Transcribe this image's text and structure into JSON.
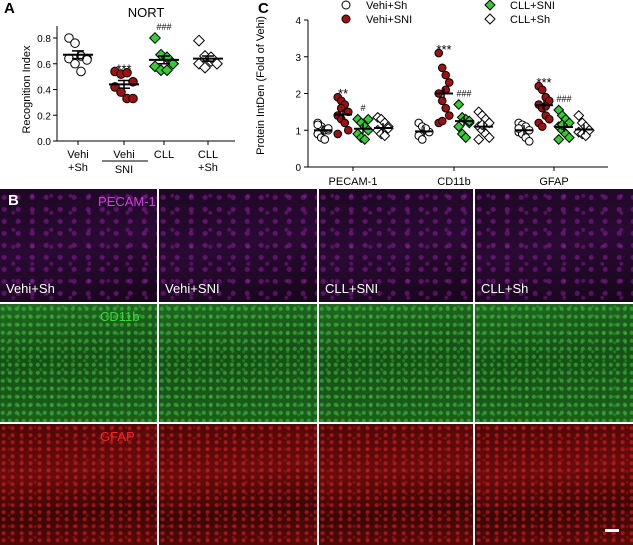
{
  "panels": {
    "a": "A",
    "b": "B",
    "c": "C"
  },
  "chart_data": [
    {
      "type": "scatter",
      "title": "NORT",
      "ylabel": "Recognition Index",
      "ylim": [
        0,
        0.8
      ],
      "yticks": [
        "0.0",
        "0.2",
        "0.4",
        "0.6",
        "0.8"
      ],
      "categories": [
        [
          "Vehi",
          "+Sh"
        ],
        [
          "Vehi"
        ],
        [
          "CLL"
        ],
        [
          "CLL",
          "+Sh"
        ]
      ],
      "group_label": "SNI",
      "colors": [
        "#ffffff",
        "#a01010",
        "#33cc33",
        "#ffffff"
      ],
      "markers": [
        "circle",
        "circle",
        "diamond",
        "diamond"
      ],
      "values": [
        [
          0.8,
          0.76,
          0.66,
          0.64,
          0.64,
          0.6,
          0.54,
          0.63
        ],
        [
          0.54,
          0.52,
          0.53,
          0.46,
          0.42,
          0.38,
          0.33,
          0.33
        ],
        [
          0.8,
          0.67,
          0.65,
          0.6,
          0.58,
          0.55,
          0.55,
          0.6
        ],
        [
          0.78,
          0.66,
          0.62,
          0.6,
          0.6,
          0.57,
          0.65
        ]
      ],
      "means": [
        0.67,
        0.44,
        0.63,
        0.64
      ],
      "sem": [
        0.03,
        0.03,
        0.03,
        0.02
      ],
      "annotations": [
        "",
        "***",
        "###",
        ""
      ]
    },
    {
      "type": "scatter",
      "ylabel": "Protein IntDen (Fold of Vehi)",
      "ylim": [
        0,
        4
      ],
      "yticks": [
        "0",
        "1",
        "2",
        "3",
        "4"
      ],
      "categories": [
        "PECAM-1",
        "CD11b",
        "GFAP"
      ],
      "series": [
        {
          "name": "Vehi+Sh",
          "color": "#ffffff",
          "marker": "circle"
        },
        {
          "name": "Vehi+SNI",
          "color": "#a01010",
          "marker": "circle"
        },
        {
          "name": "CLL+SNI",
          "color": "#33cc33",
          "marker": "diamond"
        },
        {
          "name": "CLL+Sh",
          "color": "#ffffff",
          "marker": "diamond"
        }
      ],
      "values": [
        [
          [
            1.2,
            1.1,
            1.0,
            1.0,
            0.9,
            0.8,
            0.75,
            1.05,
            1.15
          ],
          [
            1.9,
            1.8,
            1.7,
            1.5,
            1.4,
            1.3,
            1.2,
            1.0,
            0.9,
            1.6
          ],
          [
            1.3,
            1.2,
            1.1,
            1.0,
            0.9,
            0.8,
            0.75,
            1.3
          ],
          [
            1.35,
            1.3,
            1.2,
            1.1,
            1.0,
            0.9,
            0.85,
            1.05
          ]
        ],
        [
          [
            1.2,
            1.1,
            1.0,
            0.95,
            0.85,
            0.75,
            1.05
          ],
          [
            3.1,
            2.7,
            2.5,
            2.3,
            2.0,
            1.8,
            1.6,
            1.4,
            1.2,
            1.25,
            2.1
          ],
          [
            1.7,
            1.35,
            1.3,
            1.2,
            1.1,
            0.9,
            0.8,
            1.25
          ],
          [
            1.5,
            1.4,
            1.3,
            1.2,
            1.1,
            1.0,
            0.9,
            0.8,
            0.75,
            1.15
          ]
        ],
        [
          [
            1.2,
            1.15,
            1.1,
            1.0,
            0.95,
            0.9,
            0.8,
            0.7,
            1.05
          ],
          [
            2.2,
            2.1,
            1.9,
            1.8,
            1.7,
            1.6,
            1.4,
            1.3,
            1.2,
            1.1,
            1.65
          ],
          [
            1.55,
            1.4,
            1.3,
            1.2,
            1.1,
            1.0,
            0.9,
            0.8,
            0.75,
            1.15
          ],
          [
            1.4,
            1.2,
            1.1,
            1.0,
            0.95,
            0.9,
            0.85
          ]
        ]
      ],
      "means": [
        [
          1.0,
          1.43,
          1.04,
          1.06
        ],
        [
          0.97,
          2.0,
          1.25,
          1.1
        ],
        [
          1.0,
          1.68,
          1.09,
          1.02
        ]
      ],
      "annotations": [
        [
          "",
          "**",
          "#",
          ""
        ],
        [
          "",
          "***",
          "###",
          ""
        ],
        [
          "",
          "***",
          "###",
          ""
        ]
      ]
    }
  ],
  "micrographs": {
    "rows": [
      {
        "marker": "PECAM-1",
        "marker_color": "#d040e0"
      },
      {
        "marker": "CD11b",
        "marker_color": "#33dd33"
      },
      {
        "marker": "GFAP",
        "marker_color": "#ff2020"
      }
    ],
    "columns": [
      "Vehi+Sh",
      "Vehi+SNI",
      "CLL+SNI",
      "CLL+Sh"
    ]
  }
}
